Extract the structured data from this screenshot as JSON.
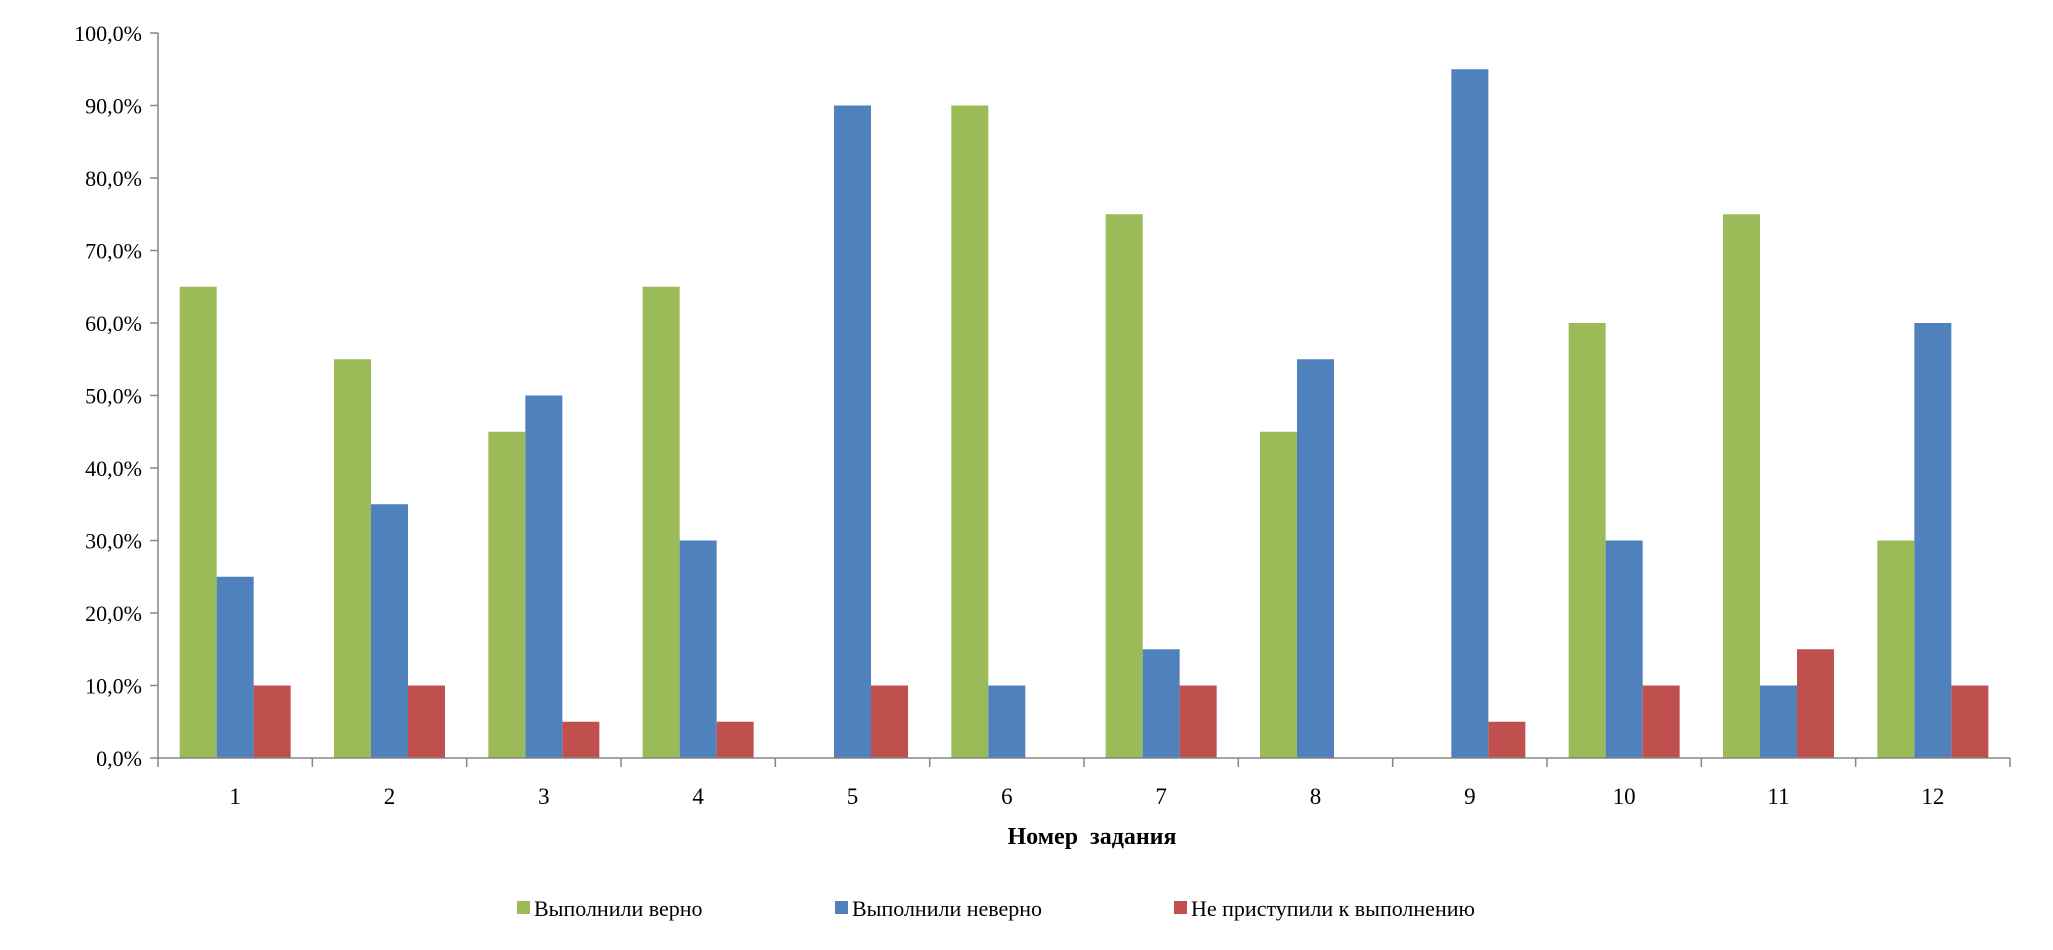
{
  "chart_data": {
    "type": "bar",
    "title": "",
    "xlabel": "Номер  задания",
    "ylabel": "",
    "categories": [
      "1",
      "2",
      "3",
      "4",
      "5",
      "6",
      "7",
      "8",
      "9",
      "10",
      "11",
      "12"
    ],
    "series": [
      {
        "name": "Выполнили  верно",
        "color": "#9BBB59",
        "values": [
          65,
          55,
          45,
          65,
          0,
          90,
          75,
          45,
          0,
          60,
          75,
          30
        ]
      },
      {
        "name": "Выполнили  неверно",
        "color": "#4F81BD",
        "values": [
          25,
          35,
          50,
          30,
          90,
          10,
          15,
          55,
          95,
          30,
          10,
          60
        ]
      },
      {
        "name": "Не приступили к выполнению",
        "color": "#C0504D",
        "values": [
          10,
          10,
          5,
          5,
          10,
          0,
          10,
          0,
          5,
          10,
          15,
          10
        ]
      }
    ],
    "ylim": [
      0,
      100
    ],
    "yticks": [
      "0,0%",
      "10,0%",
      "20,0%",
      "30,0%",
      "40,0%",
      "50,0%",
      "60,0%",
      "70,0%",
      "80,0%",
      "90,0%",
      "100,0%"
    ],
    "grid": false,
    "legend_position": "bottom"
  }
}
